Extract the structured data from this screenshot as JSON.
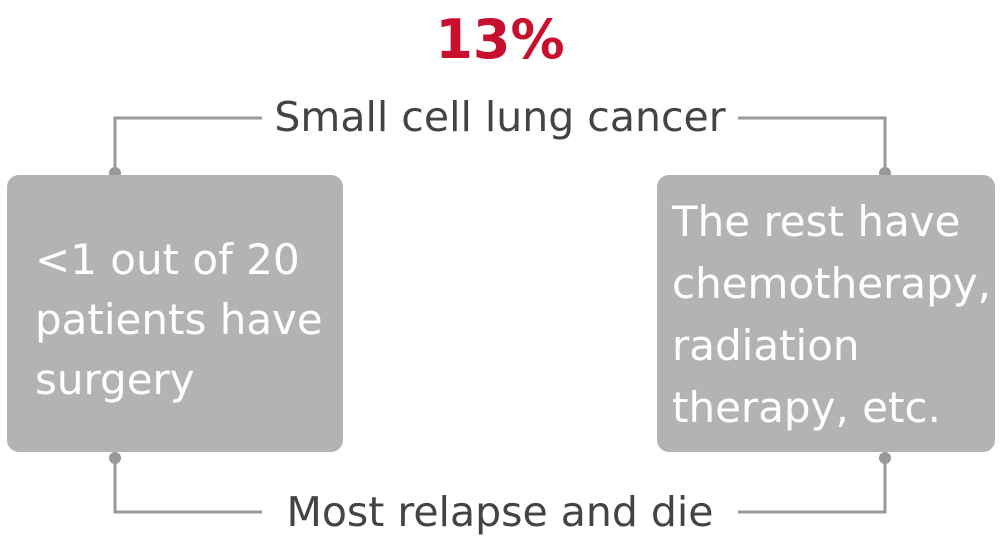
{
  "percentage": "13%",
  "top_label": "Small cell lung cancer",
  "bottom_label": "Most relapse and die",
  "left_box": {
    "lines": [
      "<1 out of 20",
      "patients have",
      "surgery"
    ]
  },
  "right_box": {
    "lines": [
      "The rest have",
      "chemotherapy,",
      "radiation",
      "therapy, etc."
    ]
  },
  "colors": {
    "accent": "#c8102e",
    "box": "#b3b3b3",
    "connector": "#999999",
    "text": "#444444"
  }
}
